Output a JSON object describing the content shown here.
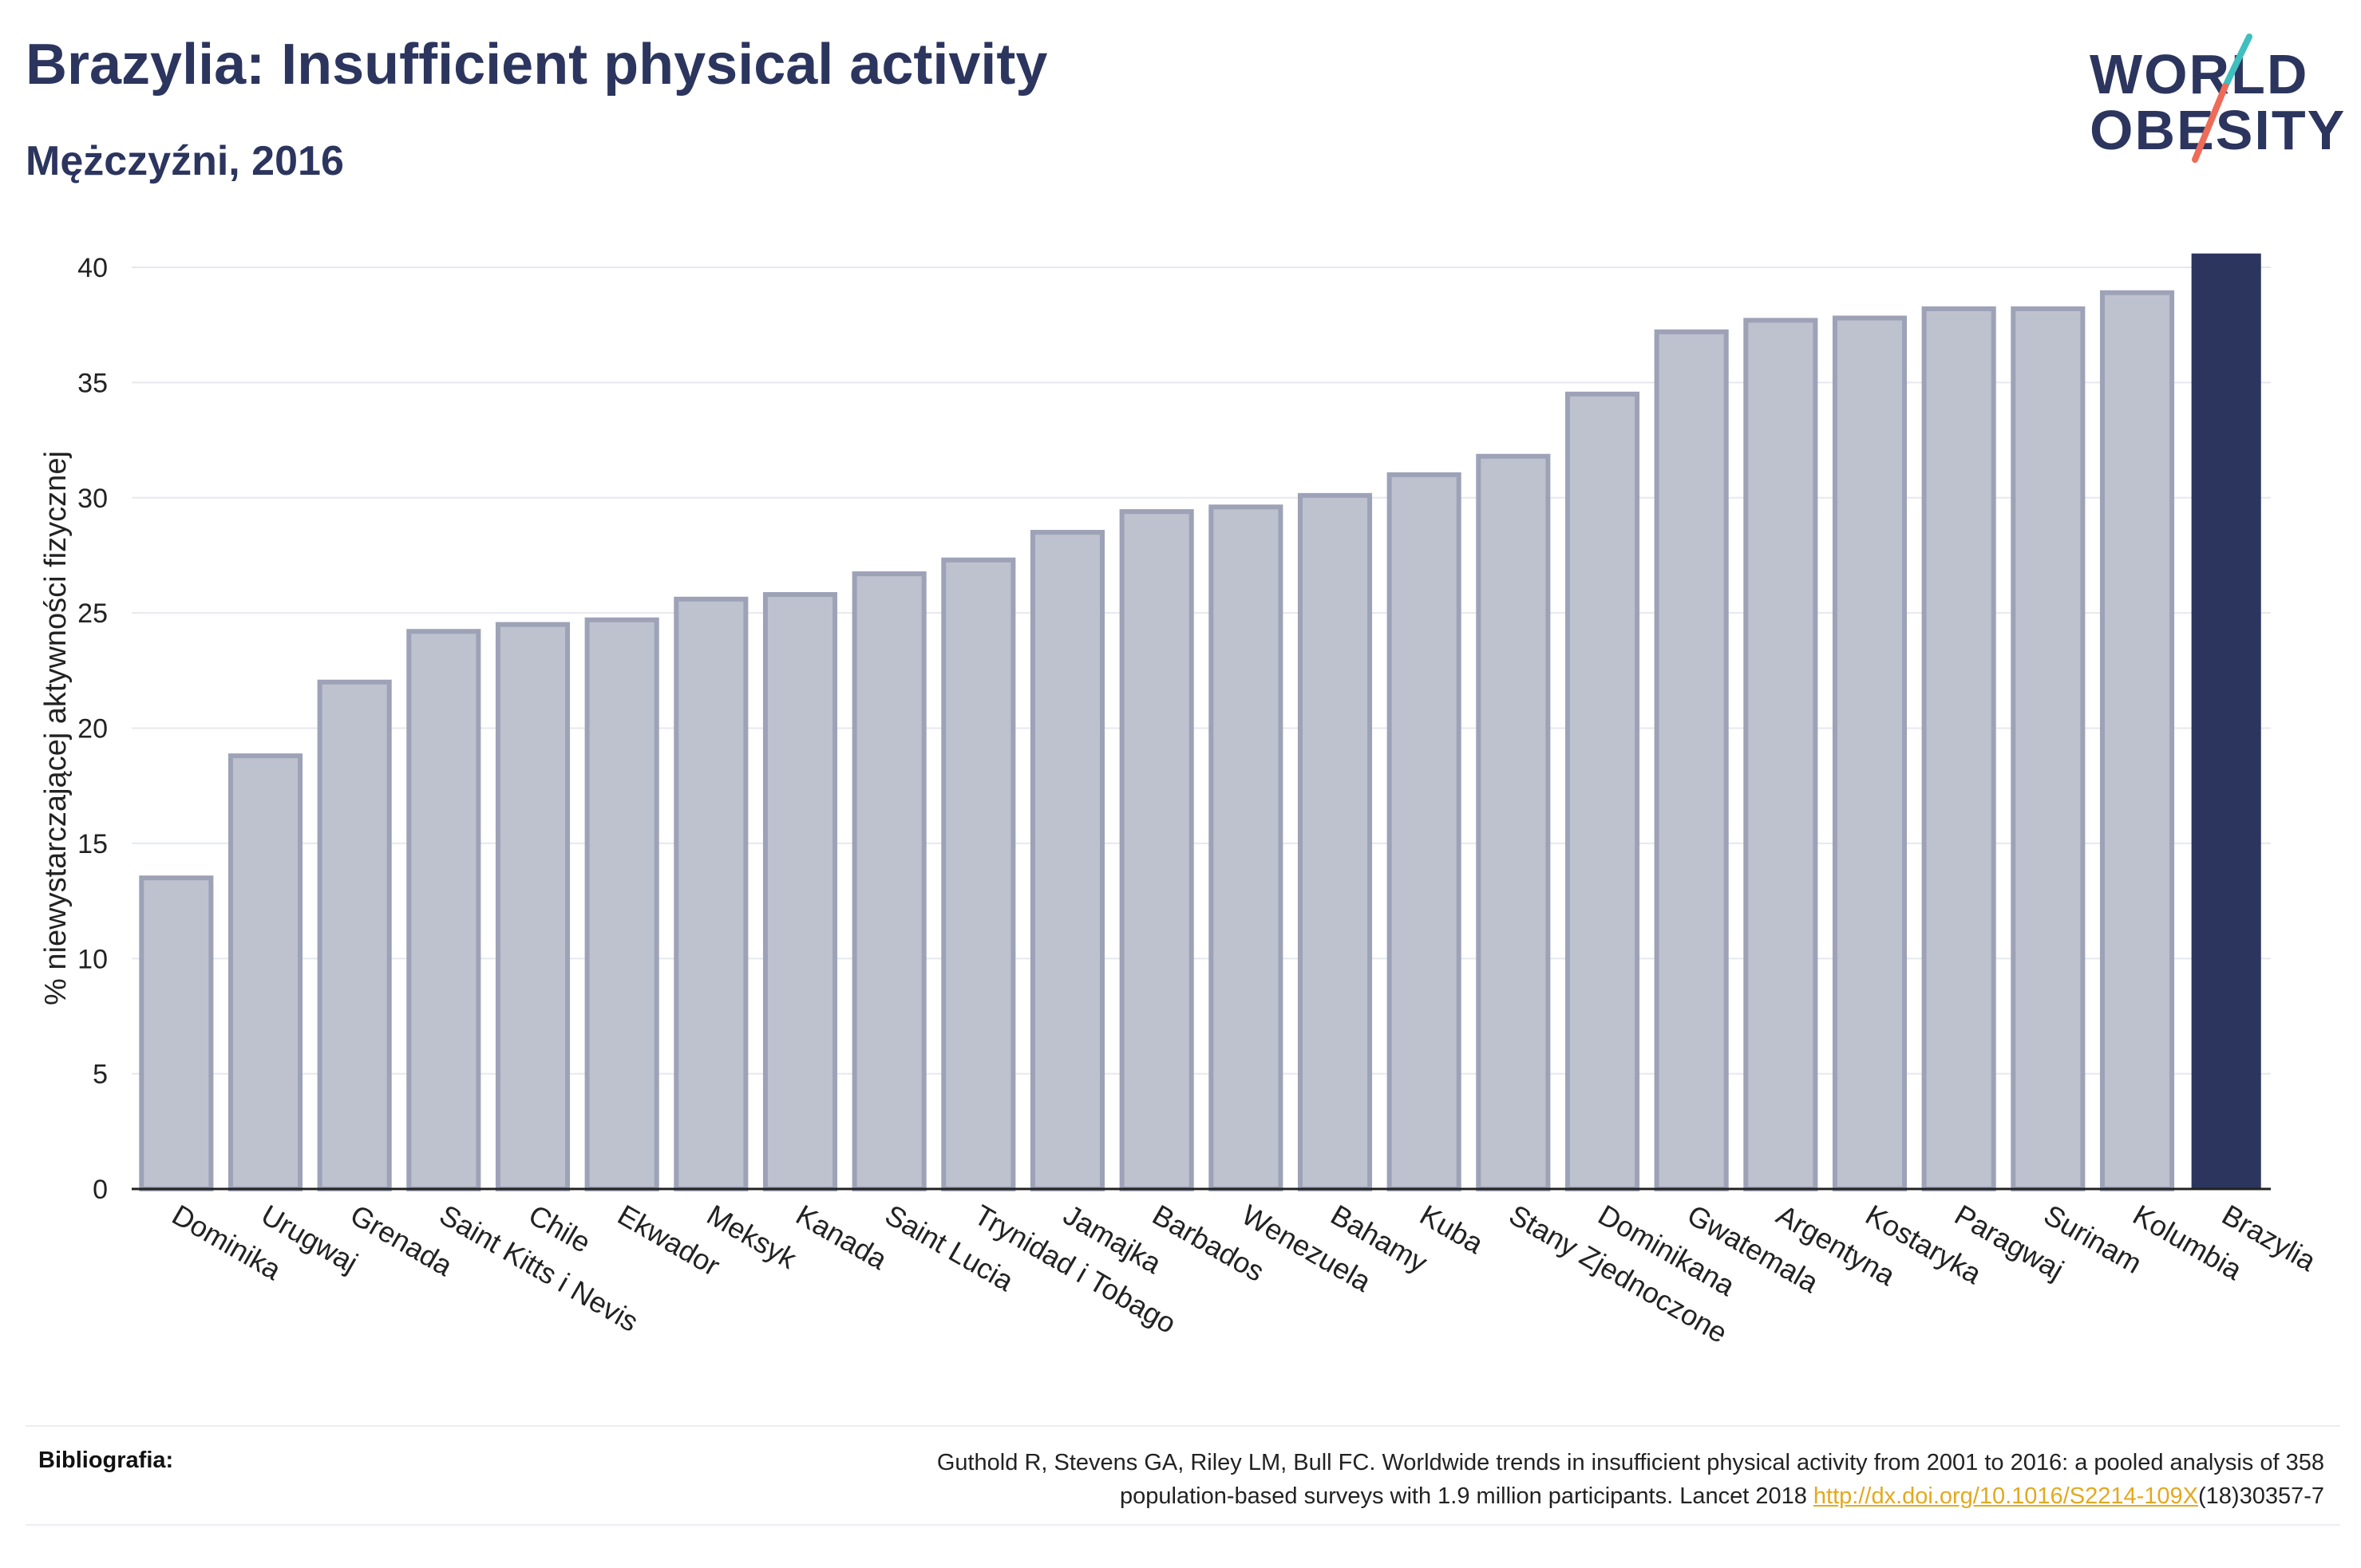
{
  "header": {
    "title": "Brazylia: Insufficient physical activity",
    "subtitle": "Mężczyźni, 2016"
  },
  "logo": {
    "line1": "WORLD",
    "line2": "OBESITY"
  },
  "colors": {
    "primary": "#2b355e",
    "bar_fill": "#bec1ce",
    "bar_stroke": "#9da2b7",
    "highlight": "#2b355e",
    "logo_teal": "#3fbfbf",
    "logo_coral": "#ee6b58",
    "link": "#e3a91e"
  },
  "chart_data": {
    "type": "bar",
    "ylabel": "% niewystarczającej aktywności fizycznej",
    "ylim": [
      0,
      40
    ],
    "yticks": [
      0,
      5,
      10,
      15,
      20,
      25,
      30,
      35,
      40
    ],
    "grid": true,
    "highlight": "Brazylia",
    "categories": [
      "Dominika",
      "Urugwaj",
      "Grenada",
      "Saint Kitts i Nevis",
      "Chile",
      "Ekwador",
      "Meksyk",
      "Kanada",
      "Saint Lucia",
      "Trynidad i Tobago",
      "Jamajka",
      "Barbados",
      "Wenezuela",
      "Bahamy",
      "Kuba",
      "Stany Zjednoczone",
      "Dominikana",
      "Gwatemala",
      "Argentyna",
      "Kostaryka",
      "Paragwaj",
      "Surinam",
      "Kolumbia",
      "Brazylia"
    ],
    "values": [
      13.5,
      18.8,
      22.0,
      24.2,
      24.5,
      24.7,
      25.6,
      25.8,
      26.7,
      27.3,
      28.5,
      29.4,
      29.6,
      30.1,
      31.0,
      31.8,
      34.5,
      37.2,
      37.7,
      37.8,
      38.2,
      38.2,
      38.9,
      40.6
    ]
  },
  "footer": {
    "label": "Bibliografia:",
    "citation_line1": "Guthold R, Stevens GA, Riley LM, Bull FC. Worldwide trends in insufficient physical activity from 2001 to 2016: a pooled analysis of 358",
    "citation_line2_pre": "population-based surveys with 1.9 million participants. Lancet 2018 ",
    "citation_link": "http://dx.doi.org/10.1016/S2214-109X",
    "citation_line2_post": "(18)30357-7"
  }
}
